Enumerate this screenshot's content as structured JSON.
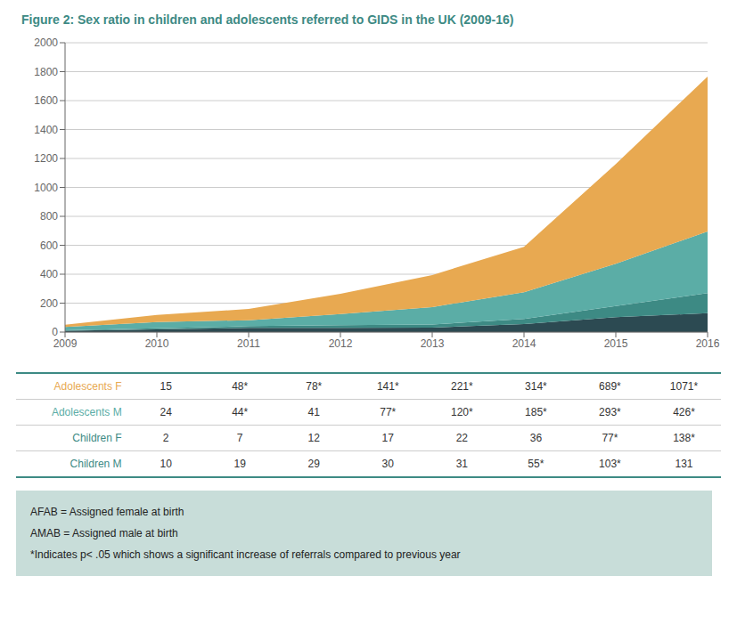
{
  "chart_data": {
    "type": "area",
    "stacked": true,
    "grid": true,
    "title": "Figure 2: Sex ratio in children and adolescents referred to GIDS in the UK (2009-16)",
    "title_color": "#3D8A84",
    "x": [
      2009,
      2010,
      2011,
      2012,
      2013,
      2014,
      2015,
      2016
    ],
    "xlim": [
      2009,
      2016
    ],
    "xticks": [
      2009,
      2010,
      2011,
      2012,
      2013,
      2014,
      2015,
      2016
    ],
    "ylim": [
      0,
      2000
    ],
    "yticks": [
      0,
      200,
      400,
      600,
      800,
      1000,
      1200,
      1400,
      1600,
      1800,
      2000
    ],
    "series": [
      {
        "name": "Children M",
        "color": "#2C4A52",
        "values": [
          10,
          19,
          29,
          30,
          31,
          55,
          103,
          131
        ]
      },
      {
        "name": "Children F",
        "color": "#3D8A84",
        "values": [
          2,
          7,
          12,
          17,
          22,
          36,
          77,
          138
        ]
      },
      {
        "name": "Adolescents M",
        "color": "#5BADA6",
        "values": [
          24,
          44,
          41,
          77,
          120,
          185,
          293,
          426
        ]
      },
      {
        "name": "Adolescents F",
        "color": "#E8A951",
        "values": [
          15,
          48,
          78,
          141,
          221,
          314,
          689,
          1071
        ]
      }
    ],
    "table": [
      {
        "label": "Adolescents F",
        "color": "#E8A951",
        "cells": [
          "15",
          "48*",
          "78*",
          "141*",
          "221*",
          "314*",
          "689*",
          "1071*"
        ]
      },
      {
        "label": "Adolescents M",
        "color": "#5BADA6",
        "cells": [
          "24",
          "44*",
          "41",
          "77*",
          "120*",
          "185*",
          "293*",
          "426*"
        ]
      },
      {
        "label": "Children F",
        "color": "#3D8A84",
        "cells": [
          "2",
          "7",
          "12",
          "17",
          "22",
          "36",
          "77*",
          "138*"
        ]
      },
      {
        "label": "Children M",
        "color": "#3D8A84",
        "cells": [
          "10",
          "19",
          "29",
          "30",
          "31",
          "55*",
          "103*",
          "131"
        ]
      }
    ],
    "annotations": [
      "AFAB = Assigned female at birth",
      "AMAB = Assigned male at birth",
      "*Indicates p< .05 which shows a significant increase of referrals compared to previous year"
    ],
    "note_color": "#C8DDD9"
  }
}
